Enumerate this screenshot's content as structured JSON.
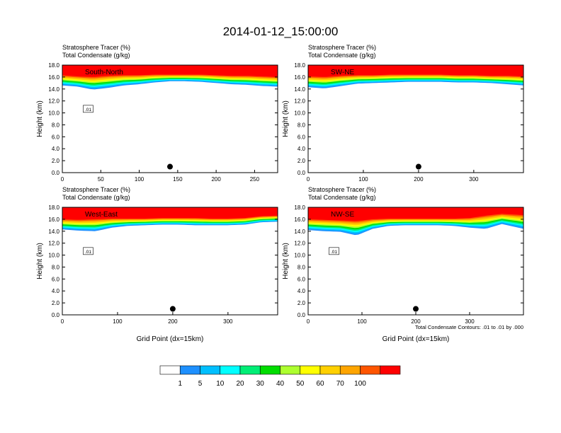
{
  "title": "2014-01-12_15:00:00",
  "panels": [
    {
      "label": "South-North",
      "header_line1": "Stratosphere Tracer   (%)",
      "header_line2": "Total Condensate   (g/kg)",
      "ylabel": "Height (km)",
      "xlabel": "",
      "xticks": [
        "0",
        "50",
        "100",
        "150",
        "200",
        "250"
      ],
      "yticks": [
        "0.0",
        "2.0",
        "4.0",
        "6.0",
        "8.0",
        "10.0",
        "12.0",
        "14.0",
        "16.0",
        "18.0"
      ],
      "contour_label": ".01",
      "footnote": ""
    },
    {
      "label": "SW-NE",
      "header_line1": "Stratosphere Tracer   (%)",
      "header_line2": "Total Condensate   (g/kg)",
      "ylabel": "Height (km)",
      "xlabel": "",
      "xticks": [
        "0",
        "100",
        "200",
        "300"
      ],
      "yticks": [
        "0.0",
        "2.0",
        "4.0",
        "6.0",
        "8.0",
        "10.0",
        "12.0",
        "14.0",
        "16.0",
        "18.0"
      ],
      "contour_label": "",
      "footnote": ""
    },
    {
      "label": "West-East",
      "header_line1": "Stratosphere Tracer   (%)",
      "header_line2": "Total Condensate   (g/kg)",
      "ylabel": "Height (km)",
      "xlabel": "Grid Point (dx=15km)",
      "xticks": [
        "0",
        "100",
        "200",
        "300"
      ],
      "yticks": [
        "0.0",
        "2.0",
        "4.0",
        "6.0",
        "8.0",
        "10.0",
        "12.0",
        "14.0",
        "16.0",
        "18.0"
      ],
      "contour_label": ".01",
      "footnote": ""
    },
    {
      "label": "NW-SE",
      "header_line1": "Stratosphere Tracer   (%)",
      "header_line2": "Total Condensate   (g/kg)",
      "ylabel": "Height (km)",
      "xlabel": "Grid Point (dx=15km)",
      "xticks": [
        "0",
        "100",
        "200",
        "300"
      ],
      "yticks": [
        "0.0",
        "2.0",
        "4.0",
        "6.0",
        "8.0",
        "10.0",
        "12.0",
        "14.0",
        "16.0",
        "18.0"
      ],
      "contour_label": ".01",
      "footnote": "Total Condensate Contours: .01 to .01 by .000"
    }
  ],
  "colorbar": {
    "labels": [
      "1",
      "5",
      "10",
      "20",
      "30",
      "40",
      "50",
      "60",
      "70",
      "100"
    ],
    "colors": [
      "#ffffff",
      "#1e90ff",
      "#00bfff",
      "#00ffff",
      "#00ee76",
      "#00dd00",
      "#adff2f",
      "#ffff00",
      "#ffd000",
      "#ffa500",
      "#ff5500",
      "#ff0000"
    ]
  },
  "chart_data": [
    {
      "type": "heatmap",
      "panel": "South-North",
      "variable": "Stratosphere Tracer (%)",
      "overlay": "Total Condensate (g/kg) contour .01",
      "x_range": [
        0,
        280
      ],
      "y_range": [
        0,
        18
      ],
      "tracer_profile": {
        "x": [
          0,
          20,
          40,
          60,
          80,
          100,
          120,
          140,
          160,
          180,
          200,
          220,
          240,
          260,
          280
        ],
        "red_base_km": [
          16.3,
          16.1,
          16.0,
          16.2,
          16.3,
          16.3,
          16.4,
          16.4,
          16.4,
          16.4,
          16.3,
          16.2,
          16.2,
          16.1,
          16.0
        ],
        "tracer_base_km": [
          14.6,
          14.4,
          13.9,
          14.2,
          14.6,
          14.8,
          15.1,
          15.3,
          15.3,
          15.2,
          15.0,
          14.8,
          14.7,
          14.5,
          14.4
        ]
      },
      "marker": {
        "x": 140,
        "y": 1.0
      }
    },
    {
      "type": "heatmap",
      "panel": "SW-NE",
      "variable": "Stratosphere Tracer (%)",
      "overlay": "Total Condensate (g/kg) contour .01",
      "x_range": [
        0,
        390
      ],
      "y_range": [
        0,
        18
      ],
      "tracer_profile": {
        "x": [
          0,
          30,
          60,
          90,
          120,
          150,
          180,
          210,
          240,
          270,
          300,
          330,
          360,
          390
        ],
        "red_base_km": [
          16.1,
          16.0,
          16.2,
          16.3,
          16.3,
          16.4,
          16.4,
          16.4,
          16.4,
          16.3,
          16.3,
          16.2,
          16.2,
          16.1
        ],
        "tracer_base_km": [
          14.3,
          14.1,
          14.5,
          14.9,
          15.0,
          15.1,
          15.2,
          15.2,
          15.2,
          15.1,
          15.1,
          15.0,
          14.8,
          14.6
        ]
      },
      "marker": {
        "x": 200,
        "y": 1.0
      }
    },
    {
      "type": "heatmap",
      "panel": "West-East",
      "variable": "Stratosphere Tracer (%)",
      "overlay": "Total Condensate (g/kg) contour .01",
      "x_range": [
        0,
        390
      ],
      "y_range": [
        0,
        18
      ],
      "tracer_profile": {
        "x": [
          0,
          30,
          60,
          90,
          120,
          150,
          180,
          210,
          240,
          270,
          300,
          330,
          360,
          390
        ],
        "red_base_km": [
          16.0,
          15.9,
          16.0,
          16.1,
          16.1,
          16.1,
          16.2,
          16.2,
          16.2,
          16.1,
          16.1,
          16.2,
          16.5,
          16.6
        ],
        "tracer_base_km": [
          14.3,
          14.1,
          14.0,
          14.6,
          14.9,
          15.0,
          15.1,
          15.1,
          15.0,
          15.0,
          15.0,
          15.1,
          15.5,
          15.6
        ]
      },
      "marker": {
        "x": 200,
        "y": 1.0
      }
    },
    {
      "type": "heatmap",
      "panel": "NW-SE",
      "variable": "Stratosphere Tracer (%)",
      "overlay": "Total Condensate (g/kg) contour .01",
      "x_range": [
        0,
        400
      ],
      "y_range": [
        0,
        18
      ],
      "tracer_profile": {
        "x": [
          0,
          30,
          60,
          90,
          120,
          150,
          180,
          210,
          240,
          270,
          300,
          330,
          360,
          400
        ],
        "red_base_km": [
          16.0,
          15.9,
          15.8,
          15.7,
          16.0,
          16.1,
          16.1,
          16.1,
          16.1,
          16.1,
          16.2,
          16.6,
          16.9,
          16.7
        ],
        "tracer_base_km": [
          14.2,
          14.0,
          13.9,
          13.3,
          14.4,
          14.9,
          15.0,
          15.0,
          15.0,
          14.9,
          14.6,
          14.4,
          15.2,
          14.4
        ]
      },
      "marker": {
        "x": 200,
        "y": 1.0
      }
    }
  ]
}
